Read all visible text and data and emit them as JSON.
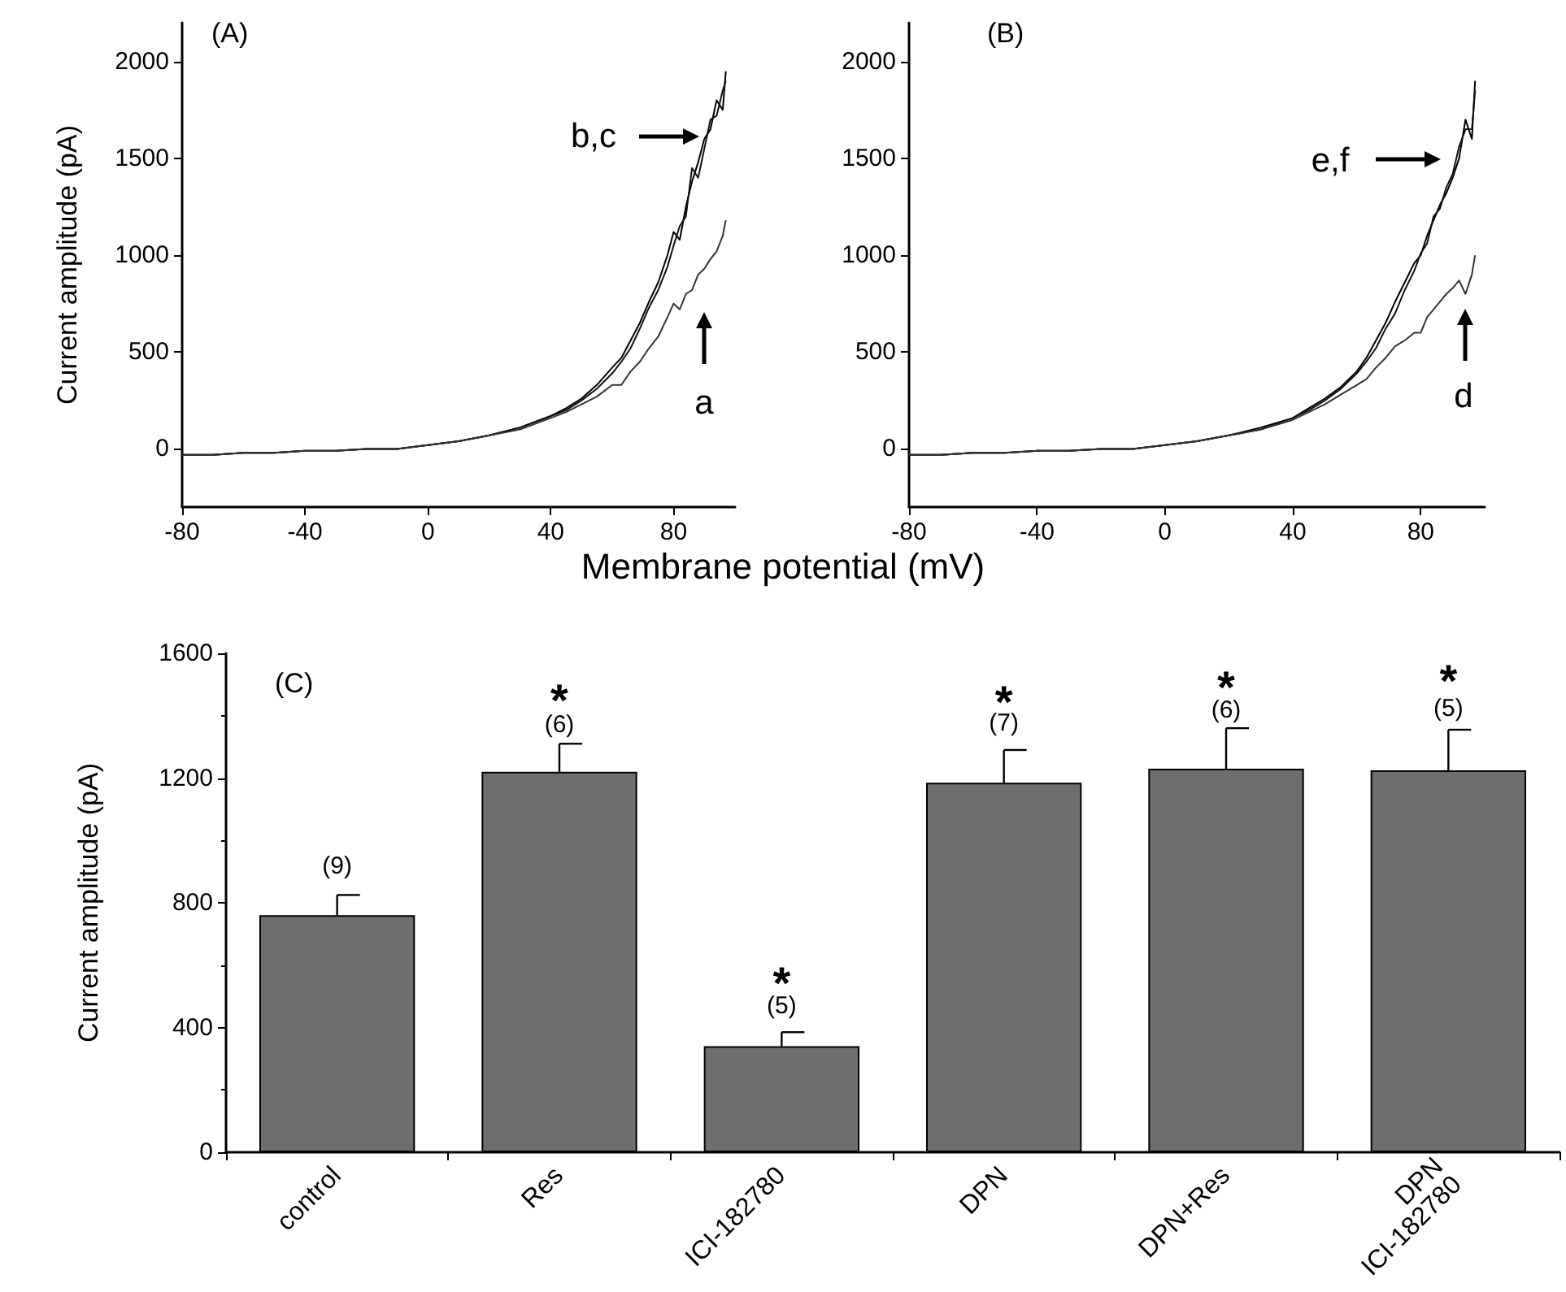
{
  "chart_data": [
    {
      "type": "line",
      "ylabel": "Current amplitude (pA)",
      "xlabel": "Membrane potential (mV)",
      "xlim": [
        -80,
        100
      ],
      "xticks": [
        -80,
        -40,
        0,
        40,
        80
      ],
      "ylim": [
        -300,
        2200
      ],
      "yticks": [
        0,
        500,
        1000,
        1500,
        2000
      ],
      "annotations": [
        "(A)",
        "b,c",
        "a"
      ],
      "x": [
        -80,
        -70,
        -60,
        -50,
        -40,
        -30,
        -20,
        -10,
        0,
        10,
        20,
        30,
        40,
        45,
        50,
        55,
        60,
        63,
        66,
        69,
        72,
        75,
        78,
        80,
        82,
        84,
        86,
        88,
        90,
        92,
        94,
        96,
        97
      ],
      "series": [
        {
          "color": "#000000",
          "values": [
            -30,
            -30,
            -20,
            -20,
            -10,
            -10,
            0,
            0,
            20,
            40,
            70,
            110,
            170,
            210,
            260,
            330,
            420,
            470,
            560,
            650,
            760,
            860,
            1000,
            1120,
            1080,
            1250,
            1380,
            1480,
            1600,
            1650,
            1800,
            1750,
            1950
          ]
        },
        {
          "color": "#111111",
          "values": [
            -30,
            -30,
            -20,
            -20,
            -10,
            -10,
            0,
            0,
            20,
            40,
            70,
            110,
            170,
            200,
            250,
            310,
            390,
            450,
            520,
            620,
            730,
            820,
            940,
            1050,
            1150,
            1200,
            1450,
            1400,
            1550,
            1700,
            1720,
            1850,
            1900
          ]
        },
        {
          "color": "#333333",
          "values": [
            -30,
            -30,
            -20,
            -20,
            -10,
            -10,
            0,
            0,
            20,
            40,
            70,
            100,
            160,
            190,
            230,
            270,
            330,
            330,
            400,
            450,
            520,
            580,
            680,
            750,
            720,
            800,
            820,
            900,
            930,
            980,
            1020,
            1100,
            1180
          ]
        }
      ]
    },
    {
      "type": "line",
      "xlim": [
        -80,
        100
      ],
      "xticks": [
        -80,
        -40,
        0,
        40,
        80
      ],
      "ylim": [
        -300,
        2200
      ],
      "yticks": [
        0,
        500,
        1000,
        1500,
        2000
      ],
      "annotations": [
        "(B)",
        "e,f",
        "d"
      ],
      "x": [
        -80,
        -70,
        -60,
        -50,
        -40,
        -30,
        -20,
        -10,
        0,
        10,
        20,
        30,
        40,
        45,
        50,
        55,
        60,
        63,
        66,
        69,
        72,
        75,
        78,
        80,
        82,
        84,
        86,
        88,
        90,
        92,
        94,
        96,
        97
      ],
      "series": [
        {
          "color": "#000000",
          "values": [
            -30,
            -30,
            -20,
            -20,
            -10,
            -10,
            0,
            0,
            20,
            40,
            70,
            110,
            160,
            210,
            260,
            320,
            400,
            470,
            560,
            650,
            760,
            860,
            960,
            1000,
            1100,
            1180,
            1260,
            1320,
            1400,
            1500,
            1700,
            1600,
            1900
          ]
        },
        {
          "color": "#111111",
          "values": [
            -30,
            -30,
            -20,
            -20,
            -10,
            -10,
            0,
            0,
            20,
            40,
            70,
            100,
            160,
            200,
            250,
            310,
            390,
            450,
            520,
            620,
            700,
            820,
            920,
            1010,
            1060,
            1200,
            1240,
            1350,
            1420,
            1560,
            1650,
            1650,
            1850
          ]
        },
        {
          "color": "#333333",
          "values": [
            -30,
            -30,
            -20,
            -20,
            -10,
            -10,
            0,
            0,
            20,
            40,
            70,
            100,
            150,
            190,
            230,
            280,
            330,
            360,
            420,
            470,
            530,
            560,
            600,
            600,
            680,
            720,
            760,
            800,
            830,
            870,
            800,
            900,
            1000
          ]
        }
      ]
    },
    {
      "type": "bar",
      "ylabel": "Current amplitude (pA)",
      "categories": [
        "control",
        "Res",
        "ICI-182780",
        "DPN",
        "DPN+Res",
        "DPN\nICI-182780"
      ],
      "values": [
        760,
        1220,
        340,
        1185,
        1230,
        1225
      ],
      "color": "#6e6e6e",
      "errors": [
        [
          760,
          825
        ],
        [
          1220,
          1310
        ],
        [
          340,
          385
        ],
        [
          1185,
          1290
        ],
        [
          1230,
          1360
        ],
        [
          1225,
          1355
        ]
      ],
      "ylim": [
        0,
        1600
      ],
      "yticks": [
        0,
        400,
        800,
        1200,
        1600
      ],
      "annotations": [
        "(C)",
        "(9)",
        "*",
        "(6)",
        "*",
        "(5)",
        "*",
        "(7)",
        "*",
        "(6)",
        "*",
        "(5)"
      ]
    }
  ]
}
